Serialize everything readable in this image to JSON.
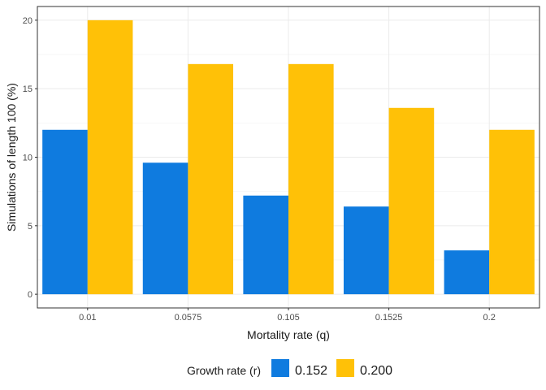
{
  "chart_data": {
    "type": "bar",
    "xlabel": "Mortality rate (q)",
    "ylabel": "Simulations of length 100 (%)",
    "categories": [
      "0.01",
      "0.0575",
      "0.105",
      "0.1525",
      "0.2"
    ],
    "series": [
      {
        "name": "0.152",
        "values": [
          12,
          9.6,
          7.2,
          6.4,
          3.2
        ],
        "color": "#0F7BDF"
      },
      {
        "name": "0.200",
        "values": [
          20,
          16.8,
          16.8,
          13.6,
          12
        ],
        "color": "#FFC107"
      }
    ],
    "ylim": [
      0,
      20
    ],
    "yticks": [
      0,
      5,
      10,
      15,
      20
    ],
    "grid": true,
    "legend": {
      "title": "Growth rate (r)",
      "position": "bottom"
    }
  }
}
